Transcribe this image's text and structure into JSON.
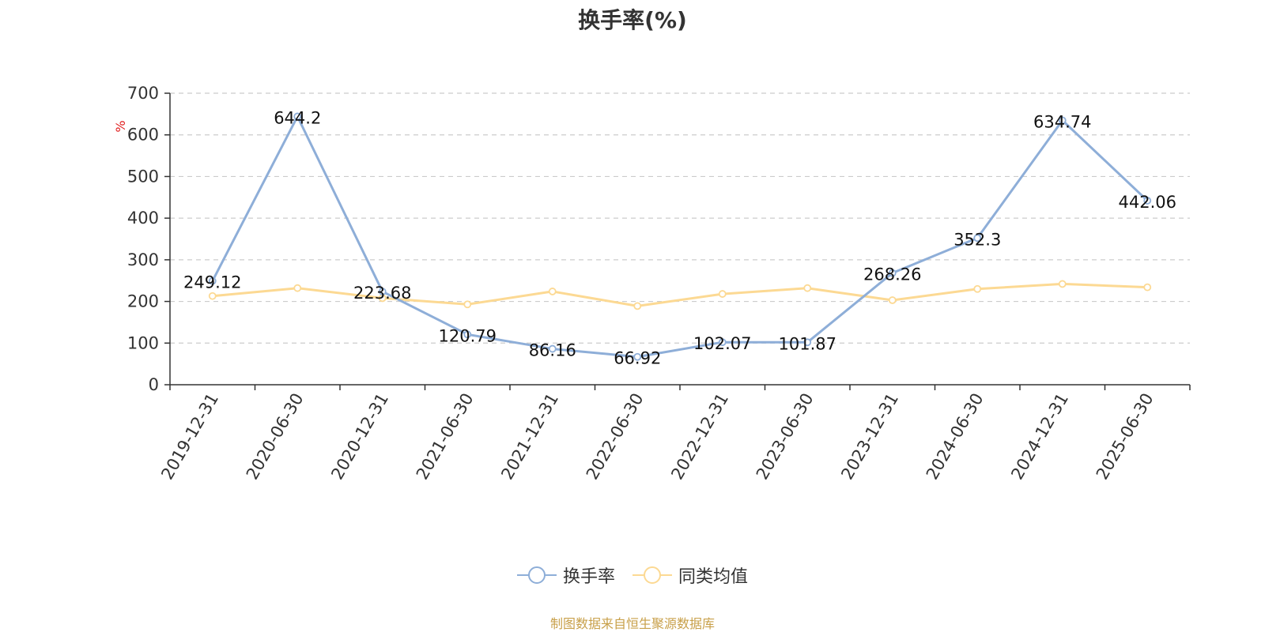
{
  "chart_data": {
    "type": "line",
    "title": "换手率(%)",
    "ylabel": "%",
    "xlabel": "",
    "ylim": [
      0,
      700
    ],
    "yticks": [
      0,
      100,
      200,
      300,
      400,
      500,
      600,
      700
    ],
    "categories": [
      "2019-12-31",
      "2020-06-30",
      "2020-12-31",
      "2021-06-30",
      "2021-12-31",
      "2022-06-30",
      "2022-12-31",
      "2023-06-30",
      "2023-12-31",
      "2024-06-30",
      "2024-12-31",
      "2025-06-30"
    ],
    "series": [
      {
        "name": "换手率",
        "color": "#8eaed8",
        "values": [
          249.12,
          644.2,
          223.68,
          120.79,
          86.16,
          66.92,
          102.07,
          101.87,
          268.26,
          352.3,
          634.74,
          442.06
        ],
        "labels": [
          "249.12",
          "644.2",
          "223.68",
          "120.79",
          "86.16",
          "66.92",
          "102.07",
          "101.87",
          "268.26",
          "352.3",
          "634.74",
          "442.06"
        ]
      },
      {
        "name": "同类均值",
        "color": "#fcd993",
        "values": [
          213,
          232,
          208,
          193,
          224,
          189,
          218,
          232,
          203,
          230,
          242,
          234
        ]
      }
    ],
    "grid": true,
    "legend_position": "bottom"
  },
  "source_text": "制图数据来自恒生聚源数据库"
}
